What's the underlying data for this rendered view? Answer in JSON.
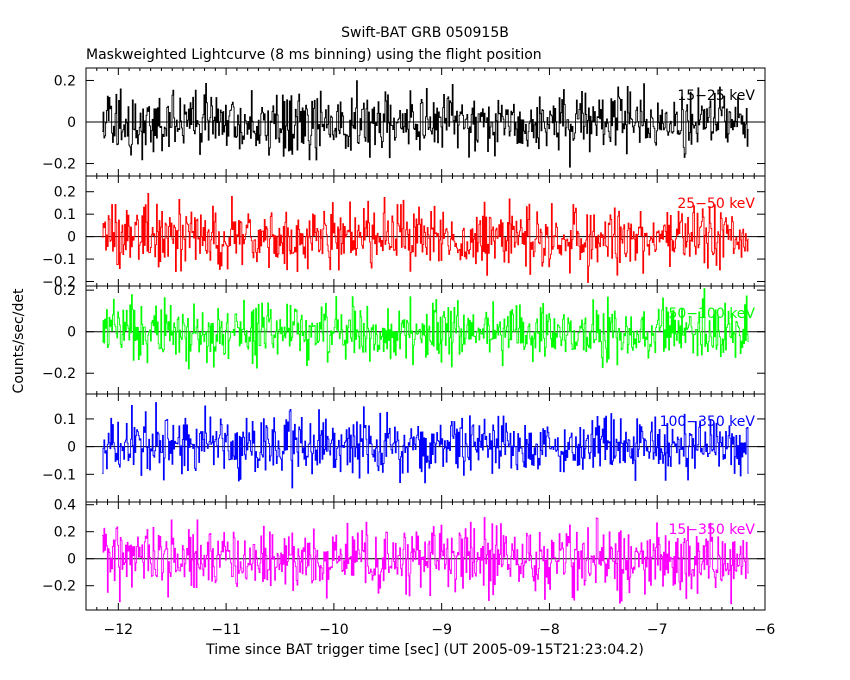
{
  "chart_data": {
    "type": "line",
    "title": "Swift-BAT GRB 050915B",
    "subtitle": "Maskweighted Lightcurve (8 ms binning) using the flight position",
    "xlabel": "Time since BAT trigger time [sec] (UT 2005-09-15T21:23:04.2)",
    "ylabel": "Counts/sec/det",
    "xlim": [
      -12.3,
      -6.0
    ],
    "x_ticks": [
      -12,
      -11,
      -10,
      -9,
      -8,
      -7,
      -6
    ],
    "x_tick_labels": [
      "−12",
      "−11",
      "−10",
      "−9",
      "−8",
      "−7",
      "−6"
    ],
    "time_range": [
      -12.15,
      -6.15
    ],
    "bin_size_sec": 0.008,
    "panels": [
      {
        "name": "15-25 keV",
        "label": "15−25 keV",
        "color": "#000000",
        "ylim": [
          -0.26,
          0.26
        ],
        "yticks": [
          -0.2,
          0,
          0.2
        ],
        "ytick_labels": [
          "−0.2",
          "0",
          "0.2"
        ],
        "noise_sigma": 0.075
      },
      {
        "name": "25-50 keV",
        "label": "25−50 keV",
        "color": "#ff0000",
        "ylim": [
          -0.22,
          0.27
        ],
        "yticks": [
          -0.2,
          -0.1,
          0,
          0.1,
          0.2
        ],
        "ytick_labels": [
          "−0.2",
          "−0.1",
          "0",
          "0.1",
          "0.2"
        ],
        "noise_sigma": 0.07
      },
      {
        "name": "50-100 keV",
        "label": "50−100 keV",
        "color": "#00ff00",
        "ylim": [
          -0.3,
          0.22
        ],
        "yticks": [
          -0.2,
          0,
          0.2
        ],
        "ytick_labels": [
          "−0.2",
          "0",
          "0.2"
        ],
        "noise_sigma": 0.07
      },
      {
        "name": "100-350 keV",
        "label": "100−350 keV",
        "color": "#0000ff",
        "ylim": [
          -0.2,
          0.19
        ],
        "yticks": [
          -0.1,
          0,
          0.1
        ],
        "ytick_labels": [
          "−0.1",
          "0",
          "0.1"
        ],
        "noise_sigma": 0.055
      },
      {
        "name": "15-350 keV",
        "label": "15−350 keV",
        "color": "#ff00ff",
        "ylim": [
          -0.38,
          0.42
        ],
        "yticks": [
          -0.2,
          0,
          0.2,
          0.4
        ],
        "ytick_labels": [
          "−0.2",
          "0",
          "0.2",
          "0.4"
        ],
        "noise_sigma": 0.12
      }
    ]
  }
}
